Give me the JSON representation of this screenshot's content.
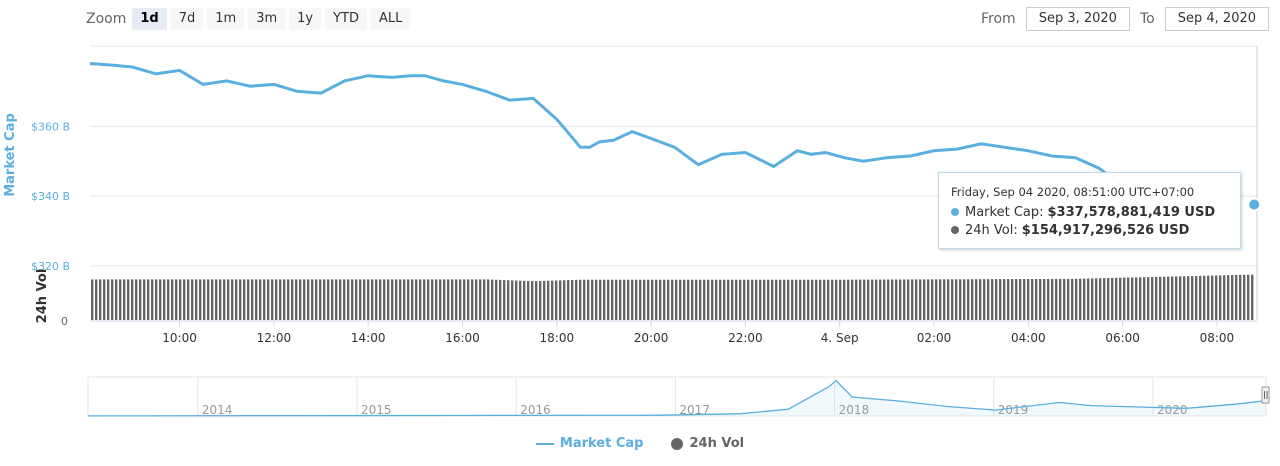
{
  "toolbar": {
    "zoom_label": "Zoom",
    "zoom_buttons": [
      "1d",
      "7d",
      "1m",
      "3m",
      "1y",
      "YTD",
      "ALL"
    ],
    "active_zoom": "1d",
    "from_label": "From",
    "from_value": "Sep 3, 2020",
    "to_label": "To",
    "to_value": "Sep 4, 2020"
  },
  "colors": {
    "market_cap": "#5aafdf",
    "volume": "#666666",
    "grid": "#e6e6e6",
    "axis_text": "#666666",
    "y_title": "#5aafdf"
  },
  "tooltip": {
    "date": "Friday, Sep 04 2020, 08:51:00 UTC+07:00",
    "market_cap_label": "Market Cap:",
    "market_cap_value": "$337,578,881,419 USD",
    "vol_label": "24h Vol:",
    "vol_value": "$154,917,296,526 USD"
  },
  "legend": {
    "market_cap": "Market Cap",
    "volume": "24h Vol"
  },
  "chart_data": [
    {
      "type": "line",
      "y_title": "Market Cap",
      "y_ticks": [
        "$320 B",
        "$340 B",
        "$360 B"
      ],
      "ylim": [
        320,
        383
      ],
      "x_ticks": [
        "10:00",
        "12:00",
        "14:00",
        "16:00",
        "18:00",
        "20:00",
        "22:00",
        "4. Sep",
        "02:00",
        "04:00",
        "06:00",
        "08:00"
      ],
      "x_range_hours": [
        -0.9,
        23.85
      ],
      "unit": "billion USD",
      "series": [
        {
          "name": "Market Cap",
          "x_hours": [
            -0.9,
            -0.4,
            0.0,
            0.5,
            1.0,
            1.5,
            2.0,
            2.5,
            3.0,
            3.5,
            4.0,
            4.5,
            5.0,
            5.5,
            5.9,
            6.2,
            6.6,
            7.0,
            7.5,
            8.0,
            8.5,
            9.0,
            9.5,
            9.7,
            9.9,
            10.2,
            10.6,
            11.0,
            11.5,
            12.0,
            12.5,
            13.0,
            13.6,
            14.1,
            14.4,
            14.7,
            15.1,
            15.5,
            16.0,
            16.5,
            17.0,
            17.5,
            18.0,
            18.5,
            19.0,
            19.5,
            20.0,
            20.5,
            21.0,
            21.5,
            21.9,
            22.3
          ],
          "values": [
            378,
            377.5,
            377,
            375,
            376,
            372,
            373,
            371.5,
            372,
            370,
            369.5,
            373,
            374.5,
            374,
            374.5,
            374.5,
            373,
            372,
            370,
            367.5,
            368,
            362,
            354,
            354,
            355.5,
            356,
            358.5,
            356.5,
            354,
            349,
            352,
            352.5,
            348.5,
            353,
            352,
            352.5,
            351,
            350,
            351,
            351.5,
            353,
            353.5,
            355,
            354,
            353,
            351.5,
            351,
            348,
            343,
            339,
            337.6,
            337.6
          ]
        }
      ]
    },
    {
      "type": "bar",
      "y_title": "24h Vol",
      "y_ticks": [
        "0"
      ],
      "series": [
        {
          "name": "24h Vol",
          "x_hours": [
            -0.9,
            7.5,
            8.5,
            9.5,
            15.0,
            20.0,
            23.85
          ],
          "values": [
            138,
            138,
            132,
            137,
            137,
            140,
            154.9
          ],
          "unit": "billion USD"
        }
      ]
    },
    {
      "type": "area",
      "role": "navigator",
      "x_ticks": [
        "2014",
        "2015",
        "2016",
        "2017",
        "2018",
        "2019",
        "2020"
      ],
      "series": [
        {
          "name": "Market Cap",
          "x_years": [
            2013.3,
            2016.9,
            2017.4,
            2017.7,
            2017.95,
            2018.0,
            2018.1,
            2018.4,
            2018.7,
            2019.0,
            2019.4,
            2019.6,
            2019.9,
            2020.2,
            2020.5,
            2020.7
          ],
          "values": [
            2,
            17,
            50,
            150,
            640,
            780,
            420,
            330,
            210,
            130,
            300,
            230,
            200,
            170,
            260,
            340
          ]
        }
      ]
    }
  ]
}
